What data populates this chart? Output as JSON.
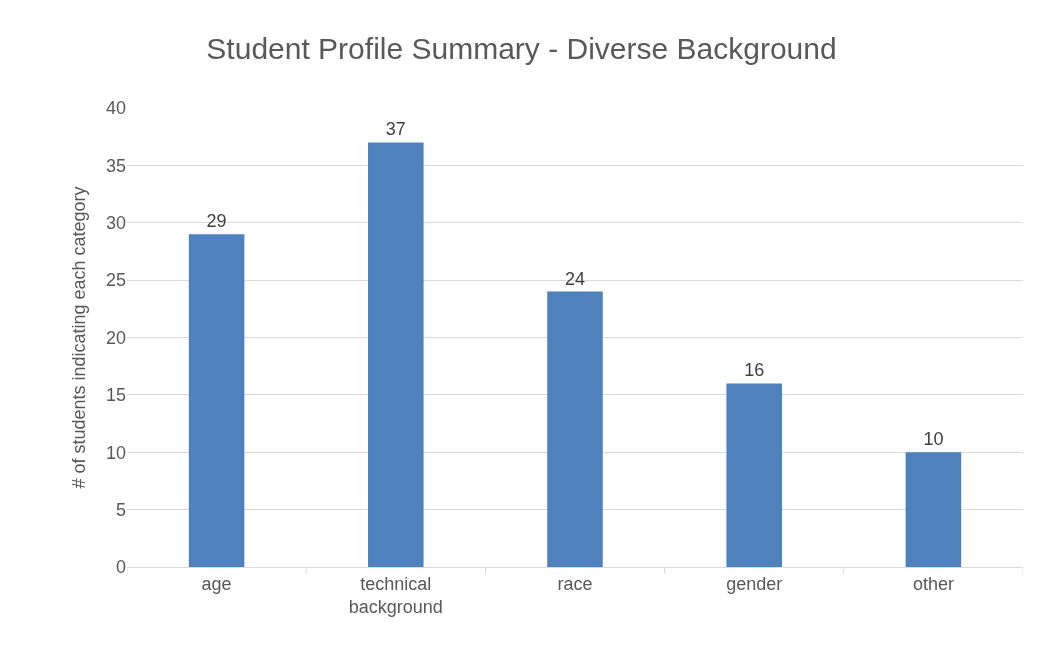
{
  "chart_data": {
    "type": "bar",
    "title": "Student Profile Summary - Diverse Background",
    "ylabel": "# of students indicating each category",
    "categories": [
      "age",
      "technical background",
      "race",
      "gender",
      "other"
    ],
    "values": [
      29,
      37,
      24,
      16,
      10
    ],
    "color": "#4f81bd",
    "ylim": [
      0,
      40
    ],
    "yticks": [
      0,
      5,
      10,
      15,
      20,
      25,
      30,
      35,
      40
    ],
    "grid": "y",
    "data_labels": true
  }
}
